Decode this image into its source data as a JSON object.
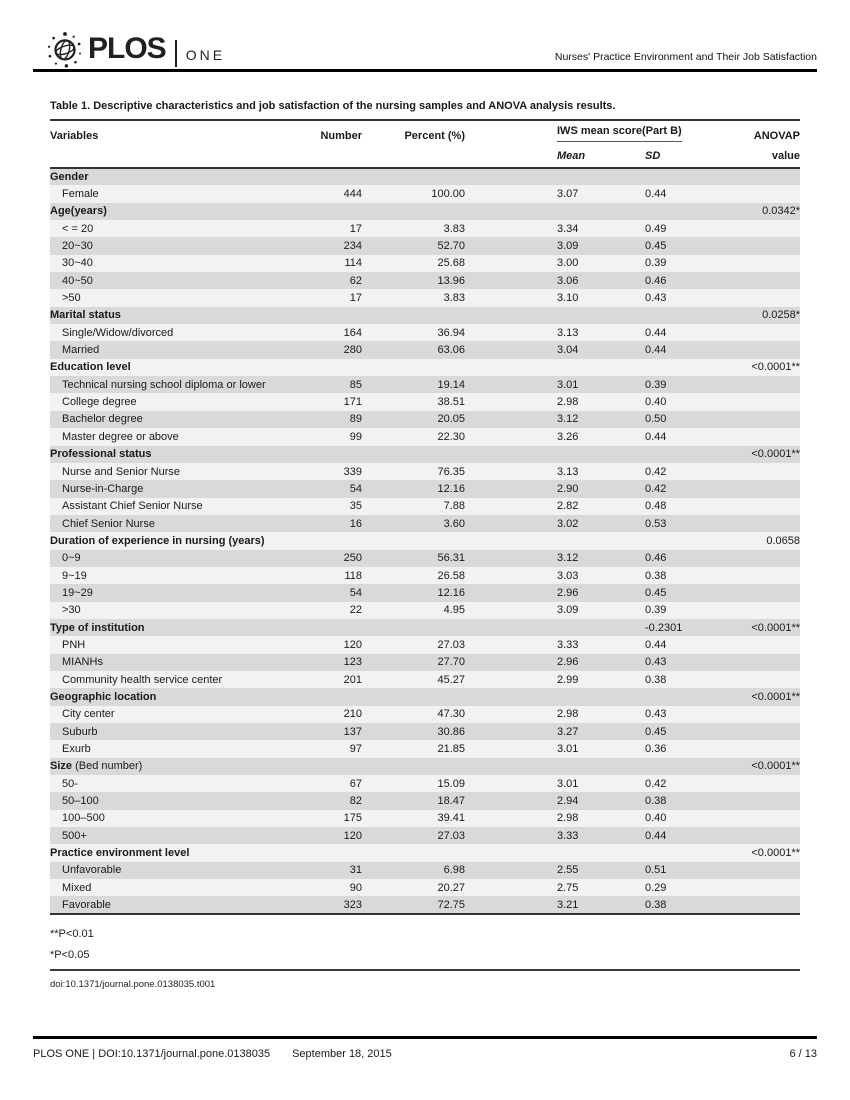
{
  "header": {
    "journal": "PLOS",
    "edition": "ONE",
    "running_head": "Nurses' Practice Environment and Their Job Satisfaction"
  },
  "table": {
    "title": "Table 1.  Descriptive characteristics and job satisfaction of the nursing samples and ANOVA analysis results.",
    "columns": {
      "variables": "Variables",
      "number": "Number",
      "percent": "Percent (%)",
      "iws_group": "IWS mean score(Part B)",
      "mean": "Mean",
      "sd": "SD",
      "anova_line1": "ANOVAP",
      "anova_line2": "value"
    },
    "rows": [
      {
        "label": "Gender",
        "level": "category",
        "number": "",
        "percent": "",
        "mean": "",
        "sd": "",
        "p": ""
      },
      {
        "label": "Female",
        "level": "item",
        "number": "444",
        "percent": "100.00",
        "mean": "3.07",
        "sd": "0.44",
        "p": ""
      },
      {
        "label": "Age(years)",
        "level": "category",
        "number": "",
        "percent": "",
        "mean": "",
        "sd": "",
        "p": "0.0342*"
      },
      {
        "label": "< = 20",
        "level": "item",
        "number": "17",
        "percent": "3.83",
        "mean": "3.34",
        "sd": "0.49",
        "p": ""
      },
      {
        "label": "20~30",
        "level": "item",
        "number": "234",
        "percent": "52.70",
        "mean": "3.09",
        "sd": "0.45",
        "p": ""
      },
      {
        "label": "30~40",
        "level": "item",
        "number": "114",
        "percent": "25.68",
        "mean": "3.00",
        "sd": "0.39",
        "p": ""
      },
      {
        "label": "40~50",
        "level": "item",
        "number": "62",
        "percent": "13.96",
        "mean": "3.06",
        "sd": "0.46",
        "p": ""
      },
      {
        "label": ">50",
        "level": "item",
        "number": "17",
        "percent": "3.83",
        "mean": "3.10",
        "sd": "0.43",
        "p": ""
      },
      {
        "label": "Marital status",
        "level": "category",
        "number": "",
        "percent": "",
        "mean": "",
        "sd": "",
        "p": "0.0258*"
      },
      {
        "label": "Single/Widow/divorced",
        "level": "item",
        "number": "164",
        "percent": "36.94",
        "mean": "3.13",
        "sd": "0.44",
        "p": ""
      },
      {
        "label": "Married",
        "level": "item",
        "number": "280",
        "percent": "63.06",
        "mean": "3.04",
        "sd": "0.44",
        "p": ""
      },
      {
        "label": "Education level",
        "level": "category",
        "number": "",
        "percent": "",
        "mean": "",
        "sd": "",
        "p": "<0.0001**"
      },
      {
        "label": "Technical nursing school diploma or lower",
        "level": "item",
        "number": "85",
        "percent": "19.14",
        "mean": "3.01",
        "sd": "0.39",
        "p": ""
      },
      {
        "label": "College degree",
        "level": "item",
        "number": "171",
        "percent": "38.51",
        "mean": "2.98",
        "sd": "0.40",
        "p": ""
      },
      {
        "label": "Bachelor degree",
        "level": "item",
        "number": "89",
        "percent": "20.05",
        "mean": "3.12",
        "sd": "0.50",
        "p": ""
      },
      {
        "label": "Master degree or above",
        "level": "item",
        "number": "99",
        "percent": "22.30",
        "mean": "3.26",
        "sd": "0.44",
        "p": ""
      },
      {
        "label": "Professional status",
        "level": "category",
        "number": "",
        "percent": "",
        "mean": "",
        "sd": "",
        "p": "<0.0001**"
      },
      {
        "label": "Nurse and Senior Nurse",
        "level": "item",
        "number": "339",
        "percent": "76.35",
        "mean": "3.13",
        "sd": "0.42",
        "p": ""
      },
      {
        "label": "Nurse-in-Charge",
        "level": "item",
        "number": "54",
        "percent": "12.16",
        "mean": "2.90",
        "sd": "0.42",
        "p": ""
      },
      {
        "label": "Assistant Chief Senior Nurse",
        "level": "item",
        "number": "35",
        "percent": "7.88",
        "mean": "2.82",
        "sd": "0.48",
        "p": ""
      },
      {
        "label": "Chief Senior Nurse",
        "level": "item",
        "number": "16",
        "percent": "3.60",
        "mean": "3.02",
        "sd": "0.53",
        "p": ""
      },
      {
        "label": "Duration of experience in nursing (years)",
        "level": "category",
        "number": "",
        "percent": "",
        "mean": "",
        "sd": "",
        "p": "0.0658"
      },
      {
        "label": "0~9",
        "level": "item",
        "number": "250",
        "percent": "56.31",
        "mean": "3.12",
        "sd": "0.46",
        "p": ""
      },
      {
        "label": "9~19",
        "level": "item",
        "number": "118",
        "percent": "26.58",
        "mean": "3.03",
        "sd": "0.38",
        "p": ""
      },
      {
        "label": "19~29",
        "level": "item",
        "number": "54",
        "percent": "12.16",
        "mean": "2.96",
        "sd": "0.45",
        "p": ""
      },
      {
        "label": ">30",
        "level": "item",
        "number": "22",
        "percent": "4.95",
        "mean": "3.09",
        "sd": "0.39",
        "p": ""
      },
      {
        "label": "Type of institution",
        "level": "category",
        "number": "",
        "percent": "",
        "mean": "",
        "sd": "-0.2301",
        "p": "<0.0001**"
      },
      {
        "label": "PNH",
        "level": "item",
        "number": "120",
        "percent": "27.03",
        "mean": "3.33",
        "sd": "0.44",
        "p": ""
      },
      {
        "label": "MIANHs",
        "level": "item",
        "number": "123",
        "percent": "27.70",
        "mean": "2.96",
        "sd": "0.43",
        "p": ""
      },
      {
        "label": "Community health service center",
        "level": "item",
        "number": "201",
        "percent": "45.27",
        "mean": "2.99",
        "sd": "0.38",
        "p": ""
      },
      {
        "label": "Geographic location",
        "level": "category",
        "number": "",
        "percent": "",
        "mean": "",
        "sd": "",
        "p": "<0.0001**"
      },
      {
        "label": "City center",
        "level": "item",
        "number": "210",
        "percent": "47.30",
        "mean": "2.98",
        "sd": "0.43",
        "p": ""
      },
      {
        "label": "Suburb",
        "level": "item",
        "number": "137",
        "percent": "30.86",
        "mean": "3.27",
        "sd": "0.45",
        "p": ""
      },
      {
        "label": "Exurb",
        "level": "item",
        "number": "97",
        "percent": "21.85",
        "mean": "3.01",
        "sd": "0.36",
        "p": ""
      },
      {
        "label": "Size",
        "note": " (Bed number)",
        "level": "category",
        "number": "",
        "percent": "",
        "mean": "",
        "sd": "",
        "p": "<0.0001**"
      },
      {
        "label": "50-",
        "level": "item",
        "number": "67",
        "percent": "15.09",
        "mean": "3.01",
        "sd": "0.42",
        "p": ""
      },
      {
        "label": "50–100",
        "level": "item",
        "number": "82",
        "percent": "18.47",
        "mean": "2.94",
        "sd": "0.38",
        "p": ""
      },
      {
        "label": "100–500",
        "level": "item",
        "number": "175",
        "percent": "39.41",
        "mean": "2.98",
        "sd": "0.40",
        "p": ""
      },
      {
        "label": "500+",
        "level": "item",
        "number": "120",
        "percent": "27.03",
        "mean": "3.33",
        "sd": "0.44",
        "p": ""
      },
      {
        "label": "Practice environment level",
        "level": "category",
        "number": "",
        "percent": "",
        "mean": "",
        "sd": "",
        "p": "<0.0001**"
      },
      {
        "label": "Unfavorable",
        "level": "item",
        "number": "31",
        "percent": "6.98",
        "mean": "2.55",
        "sd": "0.51",
        "p": ""
      },
      {
        "label": "Mixed",
        "level": "item",
        "number": "90",
        "percent": "20.27",
        "mean": "2.75",
        "sd": "0.29",
        "p": ""
      },
      {
        "label": "Favorable",
        "level": "item",
        "number": "323",
        "percent": "72.75",
        "mean": "3.21",
        "sd": "0.38",
        "p": ""
      }
    ],
    "footnotes": [
      "**P<0.01",
      "*P<0.05"
    ],
    "doi": "doi:10.1371/journal.pone.0138035.t001"
  },
  "footer": {
    "journal_doi": "PLOS ONE | DOI:10.1371/journal.pone.0138035",
    "date": "September 18, 2015",
    "page": "6 / 13"
  },
  "colors": {
    "row_shade": "#d9d9d9",
    "row_light": "#f2f2f2",
    "rule_dark": "#333333",
    "rule_black": "#000000"
  }
}
